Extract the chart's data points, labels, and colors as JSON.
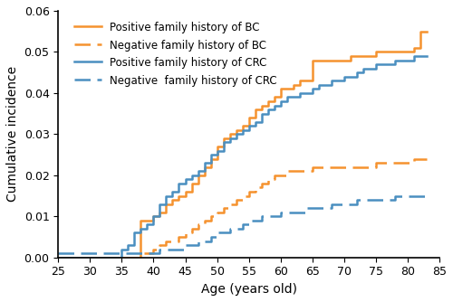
{
  "orange_solid_x": [
    25,
    37,
    38,
    39,
    40,
    41,
    42,
    43,
    44,
    45,
    46,
    47,
    48,
    49,
    50,
    51,
    52,
    53,
    54,
    55,
    56,
    57,
    58,
    59,
    60,
    61,
    62,
    63,
    64,
    65,
    66,
    67,
    68,
    69,
    70,
    71,
    72,
    73,
    74,
    75,
    76,
    77,
    78,
    79,
    80,
    81,
    82,
    83
  ],
  "orange_solid_y": [
    0.0,
    0.0,
    0.009,
    0.009,
    0.01,
    0.011,
    0.013,
    0.014,
    0.015,
    0.016,
    0.018,
    0.02,
    0.022,
    0.024,
    0.027,
    0.029,
    0.03,
    0.031,
    0.032,
    0.034,
    0.036,
    0.037,
    0.038,
    0.039,
    0.041,
    0.041,
    0.042,
    0.043,
    0.043,
    0.048,
    0.048,
    0.048,
    0.048,
    0.048,
    0.048,
    0.049,
    0.049,
    0.049,
    0.049,
    0.05,
    0.05,
    0.05,
    0.05,
    0.05,
    0.05,
    0.051,
    0.055,
    0.055
  ],
  "orange_dashed_x": [
    25,
    37,
    38,
    39,
    40,
    41,
    42,
    43,
    44,
    45,
    46,
    47,
    48,
    49,
    50,
    51,
    52,
    53,
    54,
    55,
    56,
    57,
    58,
    59,
    60,
    61,
    62,
    63,
    64,
    65,
    66,
    67,
    68,
    69,
    70,
    71,
    72,
    73,
    74,
    75,
    76,
    77,
    78,
    79,
    80,
    81,
    82,
    83
  ],
  "orange_dashed_y": [
    0.0,
    0.0,
    0.001,
    0.001,
    0.002,
    0.003,
    0.004,
    0.004,
    0.005,
    0.006,
    0.007,
    0.008,
    0.009,
    0.01,
    0.011,
    0.012,
    0.013,
    0.014,
    0.015,
    0.016,
    0.017,
    0.018,
    0.019,
    0.02,
    0.02,
    0.021,
    0.021,
    0.021,
    0.021,
    0.022,
    0.022,
    0.022,
    0.022,
    0.022,
    0.022,
    0.022,
    0.022,
    0.022,
    0.022,
    0.023,
    0.023,
    0.023,
    0.023,
    0.023,
    0.023,
    0.024,
    0.024,
    0.024
  ],
  "blue_solid_x": [
    25,
    34,
    35,
    36,
    37,
    38,
    39,
    40,
    41,
    42,
    43,
    44,
    45,
    46,
    47,
    48,
    49,
    50,
    51,
    52,
    53,
    54,
    55,
    56,
    57,
    58,
    59,
    60,
    61,
    62,
    63,
    64,
    65,
    66,
    67,
    68,
    69,
    70,
    71,
    72,
    73,
    74,
    75,
    76,
    77,
    78,
    79,
    80,
    81,
    82,
    83
  ],
  "blue_solid_y": [
    0.0,
    0.0,
    0.002,
    0.003,
    0.006,
    0.007,
    0.008,
    0.01,
    0.013,
    0.015,
    0.016,
    0.018,
    0.019,
    0.02,
    0.021,
    0.023,
    0.025,
    0.026,
    0.028,
    0.029,
    0.03,
    0.031,
    0.032,
    0.033,
    0.035,
    0.036,
    0.037,
    0.038,
    0.039,
    0.039,
    0.04,
    0.04,
    0.041,
    0.042,
    0.042,
    0.043,
    0.043,
    0.044,
    0.044,
    0.045,
    0.046,
    0.046,
    0.047,
    0.047,
    0.047,
    0.048,
    0.048,
    0.048,
    0.049,
    0.049,
    0.049
  ],
  "blue_dashed_x": [
    25,
    26,
    27,
    28,
    29,
    30,
    31,
    32,
    33,
    34,
    35,
    36,
    37,
    38,
    39,
    40,
    41,
    42,
    43,
    44,
    45,
    46,
    47,
    48,
    49,
    50,
    51,
    52,
    53,
    54,
    55,
    56,
    57,
    58,
    59,
    60,
    61,
    62,
    63,
    64,
    65,
    66,
    67,
    68,
    69,
    70,
    71,
    72,
    73,
    74,
    75,
    76,
    77,
    78,
    79,
    80,
    81,
    82,
    83
  ],
  "blue_dashed_y": [
    0.001,
    0.001,
    0.001,
    0.001,
    0.001,
    0.001,
    0.001,
    0.001,
    0.001,
    0.001,
    0.001,
    0.001,
    0.001,
    0.001,
    0.001,
    0.001,
    0.002,
    0.002,
    0.002,
    0.002,
    0.003,
    0.003,
    0.004,
    0.004,
    0.005,
    0.006,
    0.006,
    0.007,
    0.007,
    0.008,
    0.009,
    0.009,
    0.01,
    0.01,
    0.01,
    0.011,
    0.011,
    0.011,
    0.011,
    0.012,
    0.012,
    0.012,
    0.012,
    0.013,
    0.013,
    0.013,
    0.013,
    0.014,
    0.014,
    0.014,
    0.014,
    0.014,
    0.014,
    0.015,
    0.015,
    0.015,
    0.015,
    0.015,
    0.015
  ],
  "orange_color": "#F5922F",
  "blue_color": "#4A8FC0",
  "xlabel": "Age (years old)",
  "ylabel": "Cumulative incidence",
  "xlim": [
    25,
    85
  ],
  "ylim": [
    0,
    0.06
  ],
  "xticks": [
    25,
    30,
    35,
    40,
    45,
    50,
    55,
    60,
    65,
    70,
    75,
    80,
    85
  ],
  "yticks": [
    0,
    0.01,
    0.02,
    0.03,
    0.04,
    0.05,
    0.06
  ],
  "legend_labels": [
    "Positive family history of BC",
    "Negative family history of BC",
    "Positive family history of CRC",
    "Negative  family history of CRC"
  ],
  "linewidth": 1.8,
  "fontsize_axis": 10,
  "fontsize_legend": 8.5
}
